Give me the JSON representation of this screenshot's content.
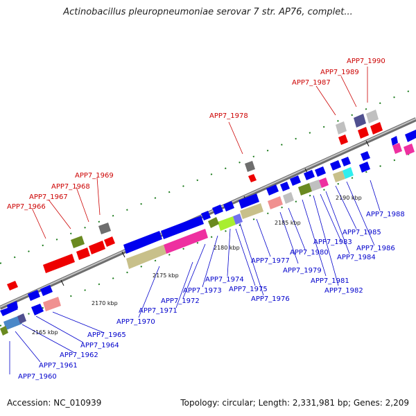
{
  "title": "Actinobacillus pleuropneumoniae serovar 7 str. AP76, complet...",
  "footer": {
    "accession": "Accession: NC_010939",
    "topology": "Topology: circular; Length: 2,331,981 bp; Genes: 2,209"
  },
  "ticks": [
    "2165 kbp",
    "2170 kbp",
    "2175 kbp",
    "2180 kbp",
    "2185 kbp",
    "2190 kbp"
  ],
  "labels": [
    {
      "id": "APP7_1960",
      "color": "#0000cc"
    },
    {
      "id": "APP7_1961",
      "color": "#0000cc"
    },
    {
      "id": "APP7_1962",
      "color": "#0000cc"
    },
    {
      "id": "APP7_1964",
      "color": "#0000cc"
    },
    {
      "id": "APP7_1965",
      "color": "#0000cc"
    },
    {
      "id": "APP7_1966",
      "color": "#cc0000"
    },
    {
      "id": "APP7_1967",
      "color": "#cc0000"
    },
    {
      "id": "APP7_1968",
      "color": "#cc0000"
    },
    {
      "id": "APP7_1969",
      "color": "#cc0000"
    },
    {
      "id": "APP7_1970",
      "color": "#0000cc"
    },
    {
      "id": "APP7_1971",
      "color": "#0000cc"
    },
    {
      "id": "APP7_1972",
      "color": "#0000cc"
    },
    {
      "id": "APP7_1973",
      "color": "#0000cc"
    },
    {
      "id": "APP7_1974",
      "color": "#0000cc"
    },
    {
      "id": "APP7_1975",
      "color": "#0000cc"
    },
    {
      "id": "APP7_1976",
      "color": "#0000cc"
    },
    {
      "id": "APP7_1977",
      "color": "#0000cc"
    },
    {
      "id": "APP7_1978",
      "color": "#cc0000"
    },
    {
      "id": "APP7_1979",
      "color": "#0000cc"
    },
    {
      "id": "APP7_1980",
      "color": "#0000cc"
    },
    {
      "id": "APP7_1981",
      "color": "#0000cc"
    },
    {
      "id": "APP7_1982",
      "color": "#0000cc"
    },
    {
      "id": "APP7_1983",
      "color": "#0000cc"
    },
    {
      "id": "APP7_1984",
      "color": "#0000cc"
    },
    {
      "id": "APP7_1985",
      "color": "#0000cc"
    },
    {
      "id": "APP7_1986",
      "color": "#0000cc"
    },
    {
      "id": "APP7_1987",
      "color": "#cc0000"
    },
    {
      "id": "APP7_1988",
      "color": "#0000cc"
    },
    {
      "id": "APP7_1989",
      "color": "#cc0000"
    },
    {
      "id": "APP7_1990",
      "color": "#cc0000"
    }
  ],
  "colors": {
    "backbone": "#888888",
    "reverse_strand": "#0000ee",
    "forward_strand": "#ee0000",
    "tick_mark": "#1a7a1a"
  }
}
